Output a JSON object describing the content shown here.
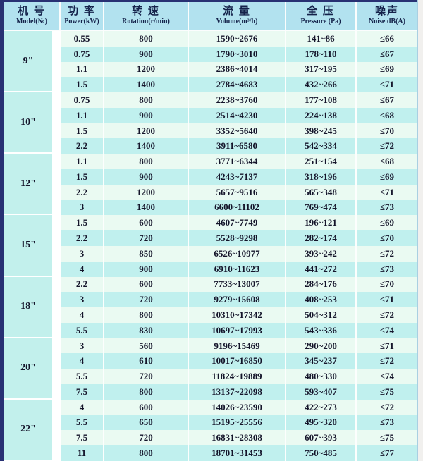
{
  "table": {
    "headers": [
      {
        "zh": "机 号",
        "en": "Model(№)"
      },
      {
        "zh": "功 率",
        "en": "Power(kW)"
      },
      {
        "zh": "转 速",
        "en": "Rotation(r/min)"
      },
      {
        "zh": "流 量",
        "en": "Volume(m³/h)"
      },
      {
        "zh": "全 压",
        "en": "Pressure (Pa)"
      },
      {
        "zh": "噪声",
        "en": "Noise dB(A)"
      }
    ],
    "groups": [
      {
        "model": "9\"",
        "rows": [
          [
            "0.55",
            "800",
            "1590~2676",
            "141~86",
            "≤66"
          ],
          [
            "0.75",
            "900",
            "1790~3010",
            "178~110",
            "≤67"
          ],
          [
            "1.1",
            "1200",
            "2386~4014",
            "317~195",
            "≤69"
          ],
          [
            "1.5",
            "1400",
            "2784~4683",
            "432~266",
            "≤71"
          ]
        ]
      },
      {
        "model": "10\"",
        "rows": [
          [
            "0.75",
            "800",
            "2238~3760",
            "177~108",
            "≤67"
          ],
          [
            "1.1",
            "900",
            "2514~4230",
            "224~138",
            "≤68"
          ],
          [
            "1.5",
            "1200",
            "3352~5640",
            "398~245",
            "≤70"
          ],
          [
            "2.2",
            "1400",
            "3911~6580",
            "542~334",
            "≤72"
          ]
        ]
      },
      {
        "model": "12\"",
        "rows": [
          [
            "1.1",
            "800",
            "3771~6344",
            "251~154",
            "≤68"
          ],
          [
            "1.5",
            "900",
            "4243~7137",
            "318~196",
            "≤69"
          ],
          [
            "2.2",
            "1200",
            "5657~9516",
            "565~348",
            "≤71"
          ],
          [
            "3",
            "1400",
            "6600~11102",
            "769~474",
            "≤73"
          ]
        ]
      },
      {
        "model": "15\"",
        "rows": [
          [
            "1.5",
            "600",
            "4607~7749",
            "196~121",
            "≤69"
          ],
          [
            "2.2",
            "720",
            "5528~9298",
            "282~174",
            "≤70"
          ],
          [
            "3",
            "850",
            "6526~10977",
            "393~242",
            "≤72"
          ],
          [
            "4",
            "900",
            "6910~11623",
            "441~272",
            "≤73"
          ]
        ]
      },
      {
        "model": "18\"",
        "rows": [
          [
            "2.2",
            "600",
            "7733~13007",
            "284~176",
            "≤70"
          ],
          [
            "3",
            "720",
            "9279~15608",
            "408~253",
            "≤71"
          ],
          [
            "4",
            "800",
            "10310~17342",
            "504~312",
            "≤72"
          ],
          [
            "5.5",
            "830",
            "10697~17993",
            "543~336",
            "≤74"
          ]
        ]
      },
      {
        "model": "20\"",
        "rows": [
          [
            "3",
            "560",
            "9196~15469",
            "290~200",
            "≤71"
          ],
          [
            "4",
            "610",
            "10017~16850",
            "345~237",
            "≤72"
          ],
          [
            "5.5",
            "720",
            "11824~19889",
            "480~330",
            "≤74"
          ],
          [
            "7.5",
            "800",
            "13137~22098",
            "593~407",
            "≤75"
          ]
        ]
      },
      {
        "model": "22\"",
        "rows": [
          [
            "4",
            "600",
            "14026~23590",
            "422~273",
            "≤72"
          ],
          [
            "5.5",
            "650",
            "15195~25556",
            "495~320",
            "≤73"
          ],
          [
            "7.5",
            "720",
            "16831~28308",
            "607~393",
            "≤75"
          ],
          [
            "11",
            "800",
            "18701~31453",
            "750~485",
            "≤77"
          ]
        ]
      }
    ]
  },
  "colors": {
    "header_bg": "#b2e2ef",
    "row_pale": "#eafaf2",
    "row_cyan": "#c0f0ee",
    "model_cell_bg": "#c2f0ec",
    "frame_border": "#283173",
    "text": "#14142a"
  }
}
